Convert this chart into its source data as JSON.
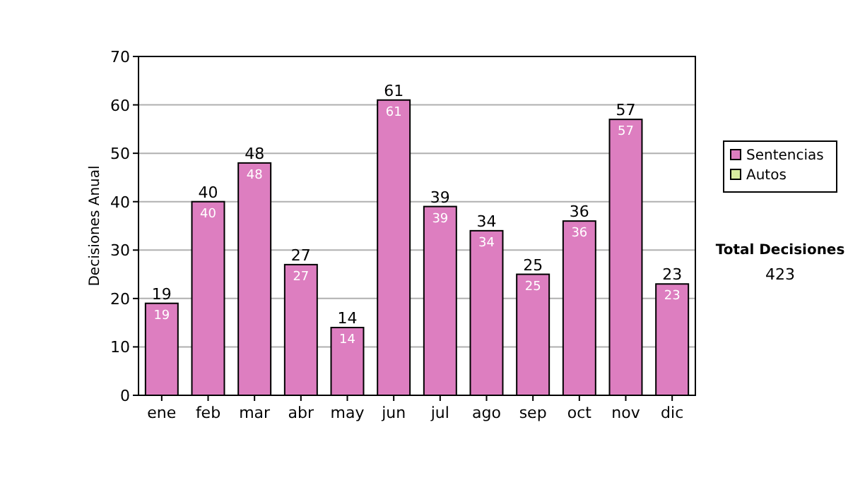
{
  "chart_data": {
    "type": "bar",
    "ylabel": "Decisiones Anual",
    "categories": [
      "ene",
      "feb",
      "mar",
      "abr",
      "may",
      "jun",
      "jul",
      "ago",
      "sep",
      "oct",
      "nov",
      "dic"
    ],
    "series": [
      {
        "name": "Sentencias",
        "color": "#dd7ec0",
        "values": [
          19,
          40,
          48,
          27,
          14,
          61,
          39,
          34,
          25,
          36,
          57,
          23
        ]
      },
      {
        "name": "Autos",
        "color": "#d8eca0",
        "values": [
          null,
          null,
          null,
          null,
          null,
          null,
          null,
          null,
          null,
          null,
          null,
          null
        ]
      }
    ],
    "totals": [
      "19",
      "40",
      "48",
      "27",
      "14",
      "61",
      "39",
      "34",
      "25",
      "36",
      "57",
      "23"
    ],
    "data_labels": true,
    "ylim": [
      0,
      70
    ],
    "yticks": [
      0,
      10,
      20,
      30,
      40,
      50,
      60,
      70
    ],
    "grid": "y",
    "legend": "right",
    "annotations": [
      "Total Decisiones",
      "423"
    ]
  }
}
